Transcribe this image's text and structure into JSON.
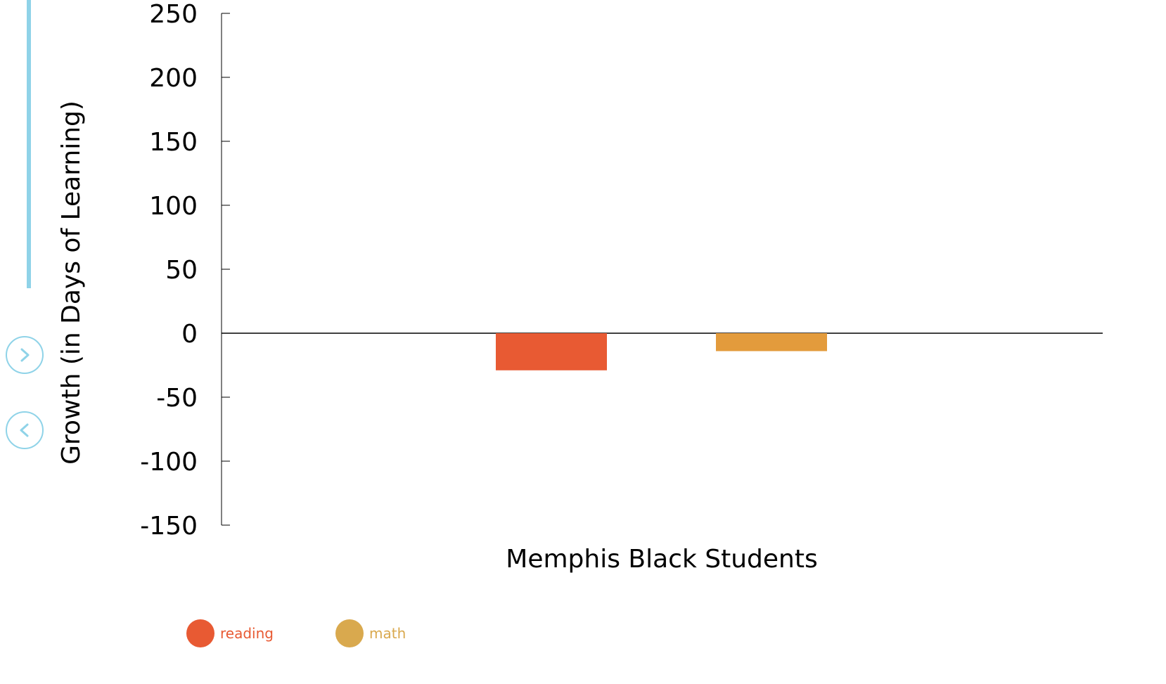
{
  "nav": {
    "next_icon": "chevron-right-icon",
    "prev_icon": "chevron-left-icon",
    "accent_color": "#8fd3e8"
  },
  "chart_data": {
    "type": "bar",
    "categories": [
      "Memphis Black Students"
    ],
    "series": [
      {
        "name": "reading",
        "values": [
          -29
        ],
        "color": "#e85a33"
      },
      {
        "name": "math",
        "values": [
          -14
        ],
        "color": "#e39b3c"
      }
    ],
    "title": "",
    "xlabel": "Memphis Black Students",
    "ylabel": "Growth (in Days of Learning)",
    "ylim": [
      -150,
      250
    ],
    "yticks": [
      250,
      200,
      150,
      100,
      50,
      0,
      -50,
      -100,
      -150
    ],
    "grid": false,
    "legend_position": "bottom-left"
  },
  "legend": {
    "items": [
      {
        "label": "reading",
        "color": "#e85a33",
        "text_color": "#e85a33"
      },
      {
        "label": "math",
        "color": "#d9a94e",
        "text_color": "#d9a94e"
      }
    ]
  }
}
